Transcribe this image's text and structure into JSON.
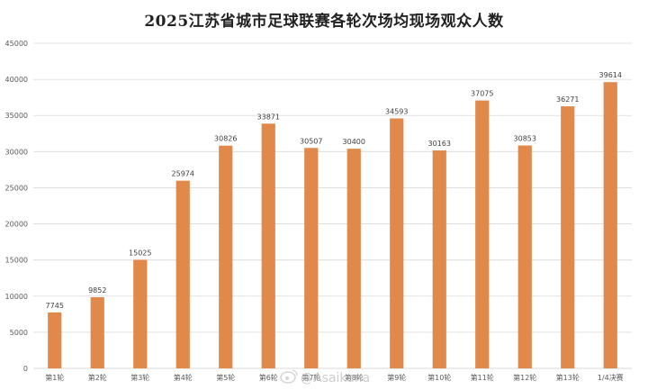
{
  "chart_data": {
    "type": "bar",
    "title": "2025江苏省城市足球联赛各轮次场均现场观众人数",
    "categories": [
      "第1轮",
      "第2轮",
      "第3轮",
      "第4轮",
      "第5轮",
      "第6轮",
      "第7轮",
      "第8轮",
      "第9轮",
      "第10轮",
      "第11轮",
      "第12轮",
      "第13轮",
      "1/4决赛"
    ],
    "values": [
      7745,
      9852,
      15025,
      25974,
      30826,
      33871,
      30507,
      30400,
      34593,
      30163,
      37075,
      30853,
      36271,
      39614
    ],
    "ylim": [
      0,
      45000
    ],
    "yticks": [
      0,
      5000,
      10000,
      15000,
      20000,
      25000,
      30000,
      35000,
      40000,
      45000
    ],
    "grid": true,
    "legend": "none",
    "bar_color": "#e0894a",
    "grid_color": "#d9d9d9"
  },
  "watermark": {
    "text": "@Asaikana",
    "icon": "weibo-icon"
  }
}
